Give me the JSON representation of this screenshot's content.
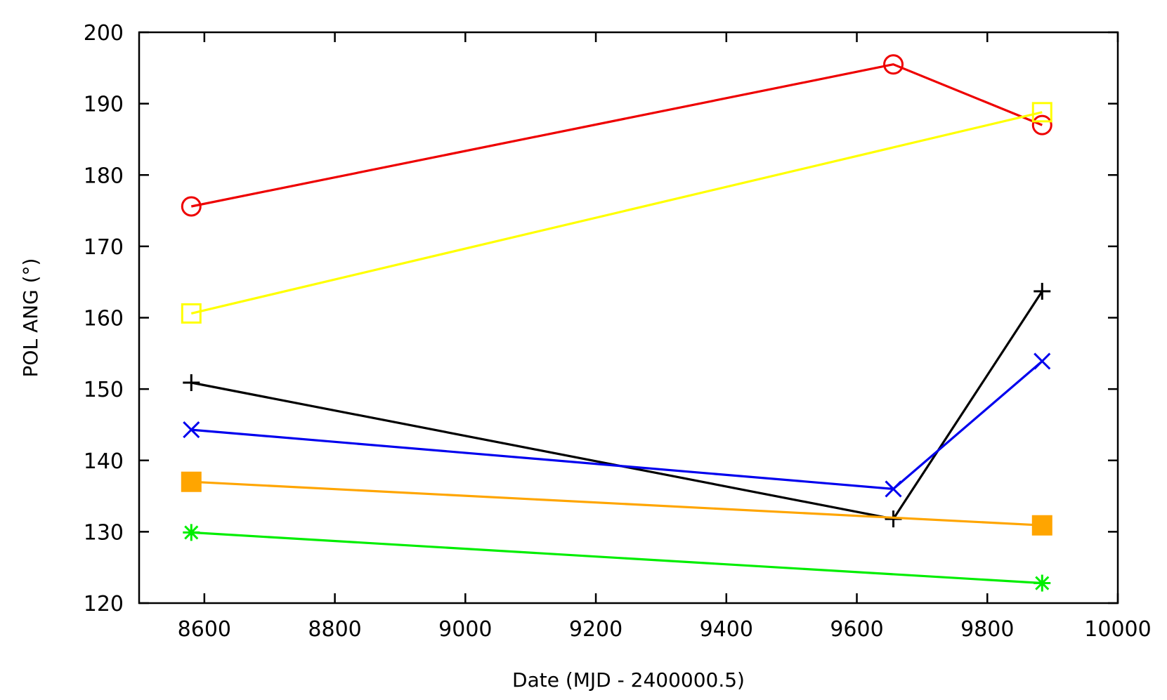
{
  "chart_data": {
    "type": "line",
    "title": "",
    "xlabel": "Date (MJD - 2400000.5)",
    "ylabel": "POL ANG (°)",
    "xlim": [
      8500,
      10000
    ],
    "ylim": [
      120,
      200
    ],
    "xticks": [
      8600,
      8800,
      9000,
      9200,
      9400,
      9600,
      9800,
      10000
    ],
    "yticks": [
      120,
      130,
      140,
      150,
      160,
      170,
      180,
      190,
      200
    ],
    "grid": false,
    "legend": "none",
    "series": [
      {
        "marker": "circle-open",
        "color": "#ee0000",
        "x": [
          8580,
          9656,
          9884
        ],
        "y": [
          175.6,
          195.5,
          187.0
        ]
      },
      {
        "marker": "square-open",
        "color": "#ffff00",
        "x": [
          8580,
          9884
        ],
        "y": [
          160.6,
          188.8
        ]
      },
      {
        "marker": "plus",
        "color": "#000000",
        "x": [
          8580,
          9656,
          9884
        ],
        "y": [
          150.9,
          131.8,
          163.7
        ]
      },
      {
        "marker": "cross",
        "color": "#0000ee",
        "x": [
          8580,
          9656,
          9884
        ],
        "y": [
          144.3,
          136.0,
          153.9
        ]
      },
      {
        "marker": "square-filled",
        "color": "#ffa500",
        "x": [
          8580,
          9884
        ],
        "y": [
          137.0,
          130.9
        ]
      },
      {
        "marker": "asterisk",
        "color": "#00ee00",
        "x": [
          8580,
          9884
        ],
        "y": [
          129.9,
          122.8
        ]
      }
    ]
  }
}
